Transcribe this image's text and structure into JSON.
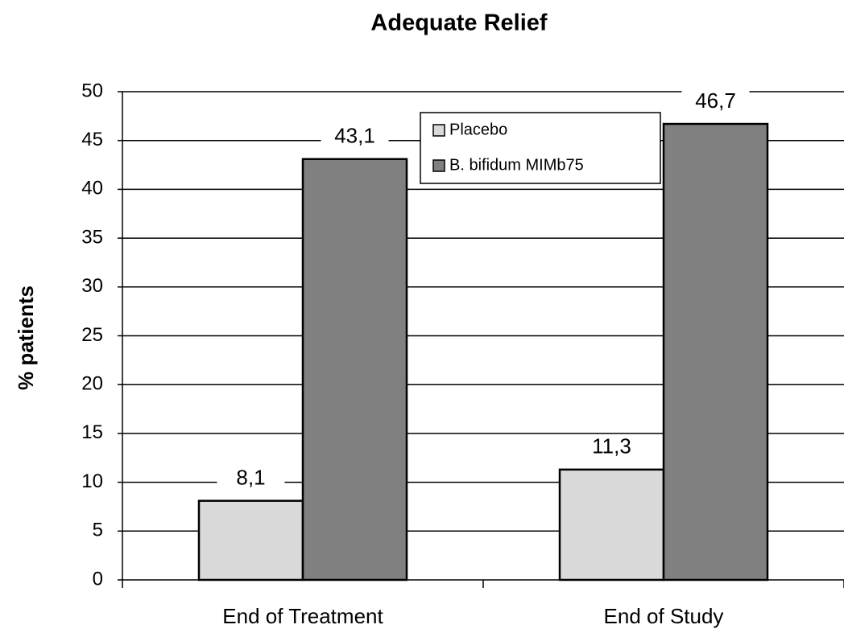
{
  "chart_data": {
    "type": "bar",
    "title": "Adequate Relief",
    "y_label": "% patients",
    "categories": [
      "End of Treatment",
      "End of Study"
    ],
    "series": [
      {
        "name": "Placebo",
        "color": "#d9d9d9",
        "values": [
          8.1,
          11.3
        ],
        "value_labels": [
          "8,1",
          "11,3"
        ]
      },
      {
        "name": "B. bifidum MIMb75",
        "color": "#808080",
        "values": [
          43.1,
          46.7
        ],
        "value_labels": [
          "43,1",
          "46,7"
        ]
      }
    ],
    "ylim": [
      0,
      50
    ],
    "yticks": [
      0,
      5,
      10,
      15,
      20,
      25,
      30,
      35,
      40,
      45,
      50
    ],
    "grid": true,
    "legend": "top-right"
  }
}
